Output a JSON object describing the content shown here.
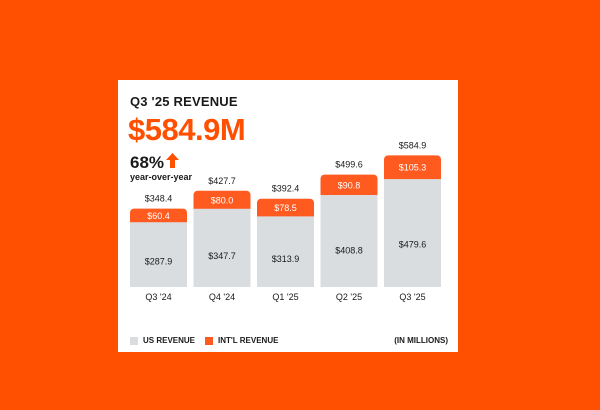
{
  "header": {
    "subtitle": "Q3 '25 REVENUE",
    "headline": "$584.9M",
    "growth": "68%",
    "growth_caption": "year-over-year"
  },
  "legend": {
    "us_label": "US REVENUE",
    "intl_label": "INT'L REVENUE",
    "units": "(IN MILLIONS)"
  },
  "colors": {
    "background": "#ff4f00",
    "intl": "#ff5a1f",
    "us": "#d9dde0",
    "text": "#1a1a1a"
  },
  "icons": {
    "growth": "arrow-up-icon"
  },
  "chart_data": {
    "type": "bar",
    "stacked": true,
    "title": "Q3 '25 REVENUE",
    "categories": [
      "Q3 '24",
      "Q4 '24",
      "Q1 '25",
      "Q2 '25",
      "Q3 '25"
    ],
    "series": [
      {
        "name": "US REVENUE",
        "values": [
          287.9,
          347.7,
          313.9,
          408.8,
          479.6
        ],
        "labels": [
          "$287.9",
          "$347.7",
          "$313.9",
          "$408.8",
          "$479.6"
        ]
      },
      {
        "name": "INT'L REVENUE",
        "values": [
          60.4,
          80.0,
          78.5,
          90.8,
          105.3
        ],
        "labels": [
          "$60.4",
          "$80.0",
          "$78.5",
          "$90.8",
          "$105.3"
        ]
      }
    ],
    "totals": [
      348.4,
      427.7,
      392.4,
      499.6,
      584.9
    ],
    "total_labels": [
      "$348.4",
      "$427.7",
      "$392.4",
      "$499.6",
      "$584.9"
    ],
    "units": "(IN MILLIONS)",
    "legend": "bottom"
  }
}
